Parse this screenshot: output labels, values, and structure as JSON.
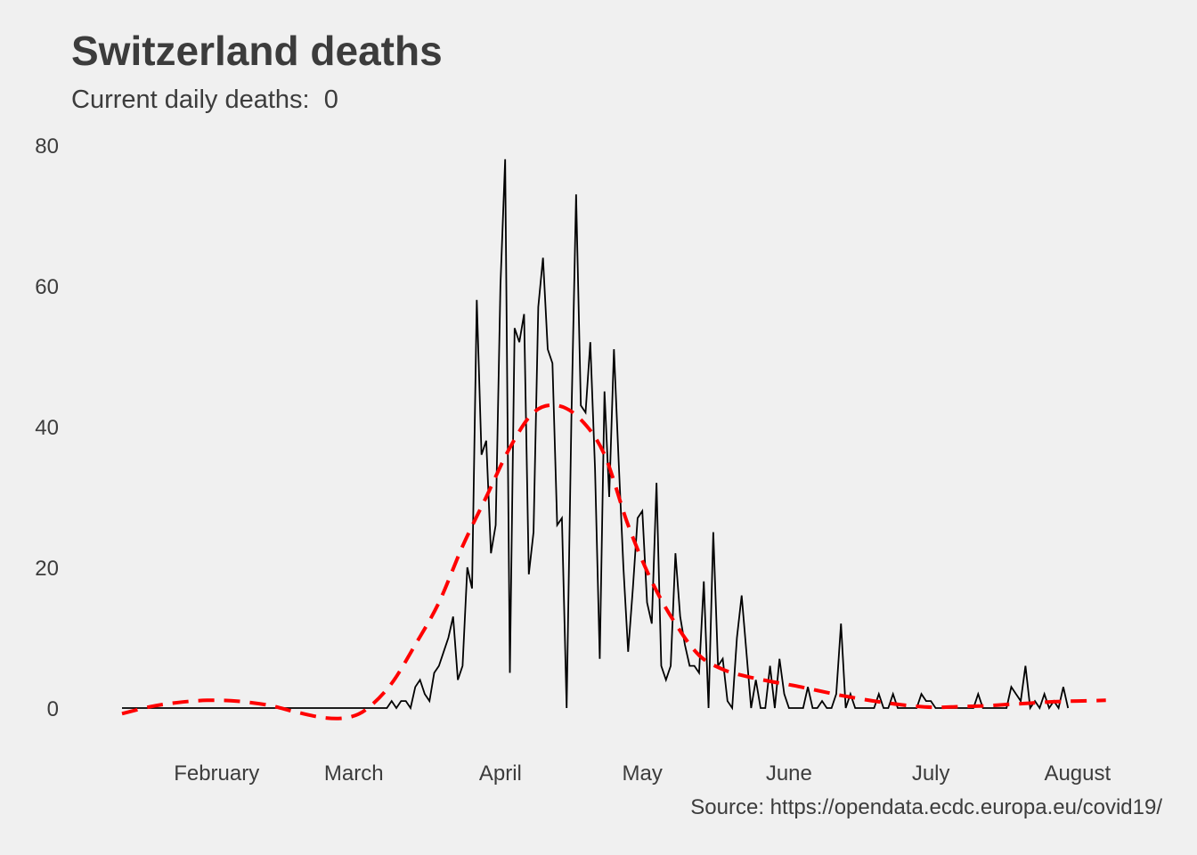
{
  "title": "Switzerland deaths",
  "subtitle_prefix": "Current daily deaths:",
  "subtitle_value": "0",
  "caption": "Source: https://opendata.ecdc.europa.eu/covid19/",
  "colors": {
    "background": "#f0f0f0",
    "line": "#000000",
    "trend": "#ff0000",
    "text": "#3c3c3c"
  },
  "chart_data": {
    "type": "line",
    "title": "Switzerland deaths",
    "xlabel": "",
    "ylabel": "",
    "x_start": "2020-01-12",
    "x_end": "2020-08-08",
    "x_ticks": [
      {
        "label": "February",
        "date": "2020-02-01"
      },
      {
        "label": "March",
        "date": "2020-03-01"
      },
      {
        "label": "April",
        "date": "2020-04-01"
      },
      {
        "label": "May",
        "date": "2020-05-01"
      },
      {
        "label": "June",
        "date": "2020-06-01"
      },
      {
        "label": "July",
        "date": "2020-07-01"
      },
      {
        "label": "August",
        "date": "2020-08-01"
      }
    ],
    "y_ticks": [
      0,
      20,
      40,
      60,
      80
    ],
    "ylim": [
      -5,
      81
    ],
    "grid": false,
    "series": [
      {
        "style": "solid-black",
        "start_date": "2020-01-12",
        "values": [
          0,
          0,
          0,
          0,
          0,
          0,
          0,
          0,
          0,
          0,
          0,
          0,
          0,
          0,
          0,
          0,
          0,
          0,
          0,
          0,
          0,
          0,
          0,
          0,
          0,
          0,
          0,
          0,
          0,
          0,
          0,
          0,
          0,
          0,
          0,
          0,
          0,
          0,
          0,
          0,
          0,
          0,
          0,
          0,
          0,
          0,
          0,
          0,
          0,
          0,
          0,
          0,
          0,
          0,
          0,
          0,
          0,
          1,
          0,
          1,
          1,
          0,
          3,
          4,
          2,
          1,
          5,
          6,
          8,
          10,
          13,
          4,
          6,
          20,
          17,
          58,
          36,
          38,
          22,
          26,
          60,
          78,
          5,
          54,
          52,
          56,
          19,
          25,
          57,
          64,
          51,
          49,
          26,
          27,
          0,
          41,
          73,
          43,
          42,
          52,
          34,
          7,
          45,
          30,
          51,
          35,
          20,
          8,
          17,
          27,
          28,
          15,
          12,
          32,
          6,
          4,
          6,
          22,
          13,
          9,
          6,
          6,
          5,
          18,
          0,
          25,
          6,
          7,
          1,
          0,
          10,
          16,
          8,
          0,
          4,
          0,
          0,
          6,
          0,
          7,
          2,
          0,
          0,
          0,
          0,
          3,
          0,
          0,
          1,
          0,
          0,
          2,
          12,
          0,
          2,
          0,
          0,
          0,
          0,
          0,
          2,
          0,
          0,
          2,
          0,
          0,
          0,
          0,
          0,
          2,
          1,
          1,
          0,
          0,
          0,
          0,
          0,
          0,
          0,
          0,
          0,
          2,
          0,
          0,
          0,
          0,
          0,
          0,
          3,
          2,
          1,
          6,
          0,
          1,
          0,
          2,
          0,
          1,
          0,
          3,
          0
        ]
      },
      {
        "style": "dashed-red-trend",
        "points": [
          [
            "2020-01-12",
            -0.8
          ],
          [
            "2020-01-18",
            0.2
          ],
          [
            "2020-01-24",
            0.8
          ],
          [
            "2020-01-30",
            1.1
          ],
          [
            "2020-02-05",
            1.0
          ],
          [
            "2020-02-12",
            0.4
          ],
          [
            "2020-02-18",
            -0.6
          ],
          [
            "2020-02-24",
            -1.4
          ],
          [
            "2020-02-29",
            -1.3
          ],
          [
            "2020-03-04",
            0.0
          ],
          [
            "2020-03-09",
            3.5
          ],
          [
            "2020-03-14",
            9.0
          ],
          [
            "2020-03-19",
            15.0
          ],
          [
            "2020-03-24",
            23.0
          ],
          [
            "2020-03-29",
            30.0
          ],
          [
            "2020-04-03",
            37.0
          ],
          [
            "2020-04-08",
            42.0
          ],
          [
            "2020-04-13",
            43.0
          ],
          [
            "2020-04-18",
            41.0
          ],
          [
            "2020-04-23",
            36.0
          ],
          [
            "2020-04-28",
            26.0
          ],
          [
            "2020-05-03",
            18.0
          ],
          [
            "2020-05-08",
            12.0
          ],
          [
            "2020-05-13",
            7.5
          ],
          [
            "2020-05-18",
            5.5
          ],
          [
            "2020-05-23",
            4.5
          ],
          [
            "2020-05-28",
            3.8
          ],
          [
            "2020-06-02",
            3.2
          ],
          [
            "2020-06-07",
            2.5
          ],
          [
            "2020-06-12",
            1.8
          ],
          [
            "2020-06-17",
            1.2
          ],
          [
            "2020-06-22",
            0.7
          ],
          [
            "2020-06-27",
            0.3
          ],
          [
            "2020-07-02",
            0.1
          ],
          [
            "2020-07-07",
            0.2
          ],
          [
            "2020-07-12",
            0.3
          ],
          [
            "2020-07-17",
            0.5
          ],
          [
            "2020-07-22",
            0.7
          ],
          [
            "2020-07-27",
            0.9
          ],
          [
            "2020-08-01",
            1.0
          ],
          [
            "2020-08-07",
            1.1
          ]
        ]
      }
    ]
  }
}
